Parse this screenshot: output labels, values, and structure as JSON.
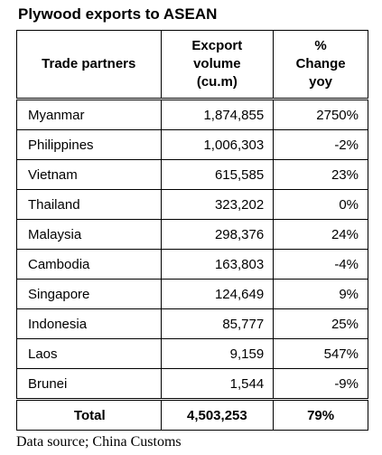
{
  "title": "Plywood exports to ASEAN",
  "table": {
    "header": [
      [
        "Trade partners"
      ],
      [
        "Excport",
        "volume",
        "(cu.m)"
      ],
      [
        "%",
        "Change",
        "yoy"
      ]
    ],
    "rows": [
      [
        "Myanmar",
        "1,874,855",
        "2750%"
      ],
      [
        "Philippines",
        "1,006,303",
        "-2%"
      ],
      [
        "Vietnam",
        "615,585",
        "23%"
      ],
      [
        "Thailand",
        "323,202",
        "0%"
      ],
      [
        "Malaysia",
        "298,376",
        "24%"
      ],
      [
        "Cambodia",
        "163,803",
        "-4%"
      ],
      [
        "Singapore",
        "124,649",
        "9%"
      ],
      [
        "Indonesia",
        "85,777",
        "25%"
      ],
      [
        "Laos",
        "9,159",
        "547%"
      ],
      [
        "Brunei",
        "1,544",
        "-9%"
      ]
    ],
    "total": [
      "Total",
      "4,503,253",
      "79%"
    ]
  },
  "source": "Data source; China Customs"
}
